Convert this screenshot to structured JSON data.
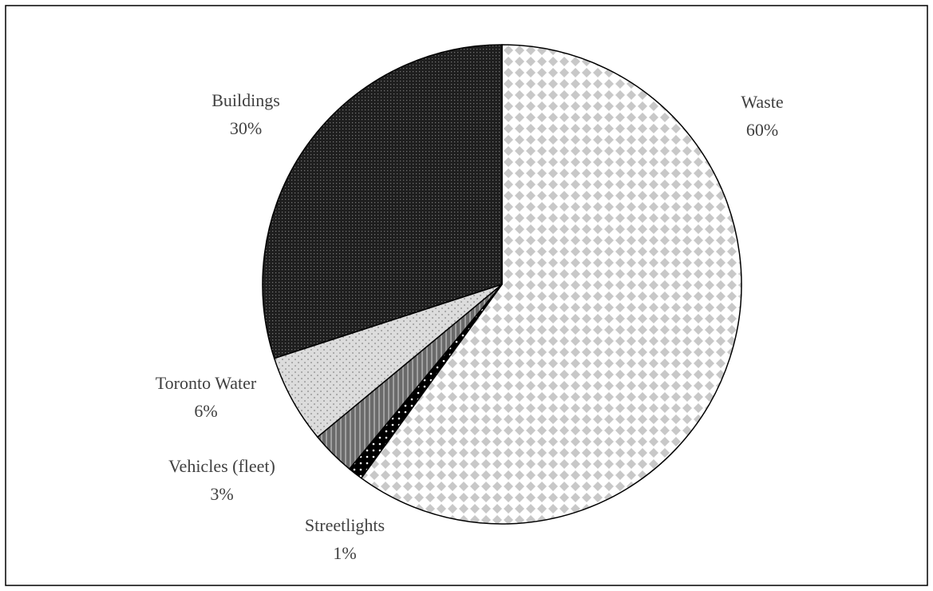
{
  "chart_data": {
    "type": "pie",
    "categories": [
      "Waste",
      "Streetlights",
      "Vehicles (fleet)",
      "Toronto Water",
      "Buildings"
    ],
    "values": [
      60,
      1,
      3,
      6,
      30
    ],
    "value_labels": [
      "60%",
      "1%",
      "3%",
      "6%",
      "30%"
    ],
    "colors": [
      "#c8c8c8",
      "#000000",
      "#6a6a6a",
      "#dcdcdc",
      "#1e1e1e"
    ]
  }
}
